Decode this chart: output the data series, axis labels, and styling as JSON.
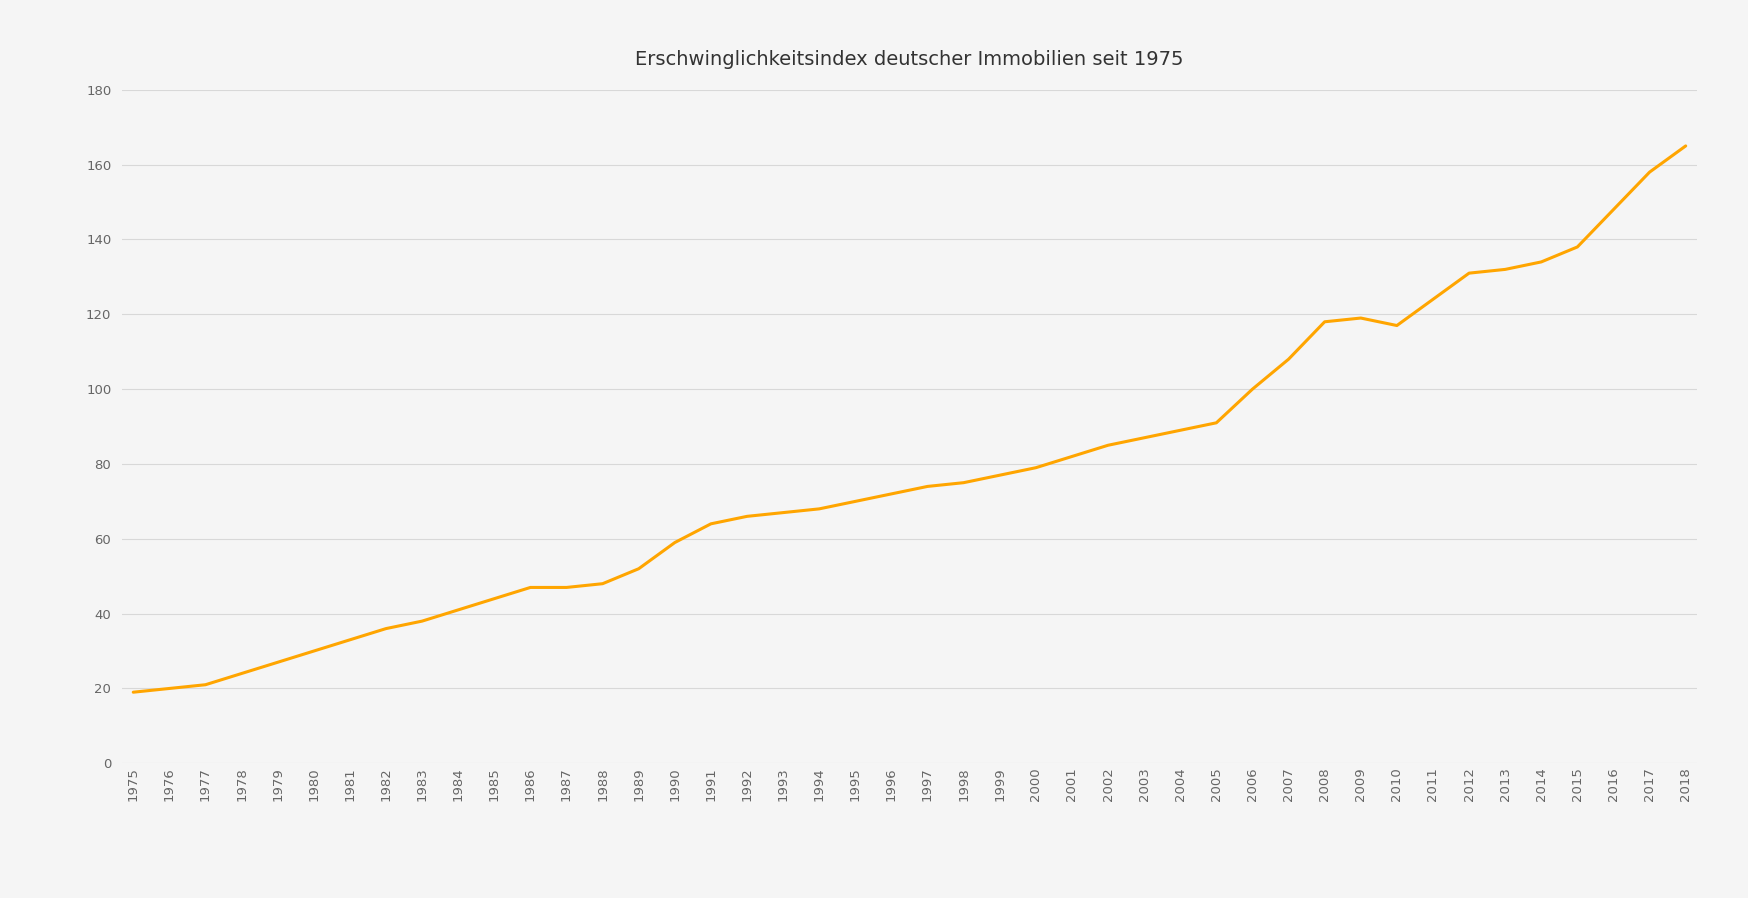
{
  "title": "Erschwinglichkeitsindex deutscher Immobilien seit 1975",
  "years": [
    1975,
    1976,
    1977,
    1978,
    1979,
    1980,
    1981,
    1982,
    1983,
    1984,
    1985,
    1986,
    1987,
    1988,
    1989,
    1990,
    1991,
    1992,
    1993,
    1994,
    1995,
    1996,
    1997,
    1998,
    1999,
    2000,
    2001,
    2002,
    2003,
    2004,
    2005,
    2006,
    2007,
    2008,
    2009,
    2010,
    2011,
    2012,
    2013,
    2014,
    2015,
    2016,
    2017,
    2018
  ],
  "values": [
    19,
    20,
    21,
    24,
    27,
    30,
    33,
    36,
    38,
    41,
    44,
    47,
    47,
    48,
    52,
    59,
    64,
    66,
    67,
    68,
    70,
    72,
    74,
    75,
    77,
    79,
    82,
    85,
    87,
    89,
    91,
    100,
    108,
    118,
    119,
    117,
    124,
    131,
    132,
    134,
    138,
    148,
    158,
    165
  ],
  "line_color": "#FFA500",
  "line_width": 2.2,
  "ylim": [
    0,
    180
  ],
  "yticks": [
    0,
    20,
    40,
    60,
    80,
    100,
    120,
    140,
    160,
    180
  ],
  "background_color": "#f5f5f5",
  "plot_background_color": "#f5f5f5",
  "grid_color": "#d8d8d8",
  "tick_color": "#666666",
  "title_fontsize": 14,
  "title_color": "#333333",
  "tick_fontsize": 9.5
}
